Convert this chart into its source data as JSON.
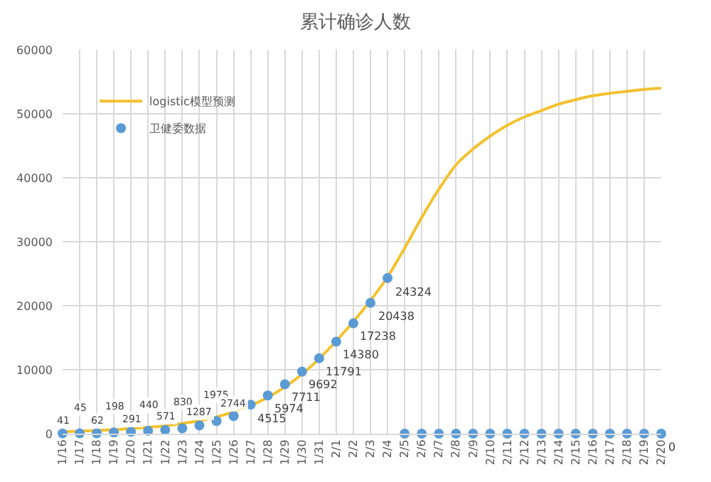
{
  "chart_data": {
    "type": "line",
    "title": "累计确诊人数",
    "categories": [
      "1/16",
      "1/17",
      "1/18",
      "1/19",
      "1/20",
      "1/21",
      "1/22",
      "1/23",
      "1/24",
      "1/25",
      "1/26",
      "1/27",
      "1/28",
      "1/29",
      "1/30",
      "1/31",
      "2/1",
      "2/2",
      "2/3",
      "2/4",
      "2/5",
      "2/6",
      "2/7",
      "2/8",
      "2/9",
      "2/10",
      "2/11",
      "2/12",
      "2/13",
      "2/14",
      "2/15",
      "2/16",
      "2/17",
      "2/18",
      "2/19",
      "2/20"
    ],
    "series": [
      {
        "name": "logistic模型预测",
        "color": "#f2c12e",
        "marker": "none",
        "values": [
          300,
          400,
          500,
          600,
          800,
          1000,
          1200,
          1600,
          2000,
          2600,
          3400,
          4400,
          5700,
          7300,
          9300,
          11700,
          14500,
          17500,
          20800,
          24500,
          29000,
          33800,
          38200,
          42000,
          44500,
          46500,
          48200,
          49500,
          50500,
          51500,
          52200,
          52800,
          53200,
          53500,
          53800,
          54000
        ]
      },
      {
        "name": "卫健委数据",
        "type": "scatter",
        "color": "#5b9bd5",
        "marker": "circle",
        "values": [
          41,
          45,
          62,
          198,
          291,
          440,
          571,
          830,
          1287,
          1975,
          2744,
          4515,
          5974,
          7711,
          9692,
          11791,
          14380,
          17238,
          20438,
          24324,
          0,
          0,
          0,
          0,
          0,
          0,
          0,
          0,
          0,
          0,
          0,
          0,
          0,
          0,
          0,
          0
        ],
        "value_labels": [
          "41",
          "45",
          "62",
          "198",
          "291",
          "440",
          "571",
          "830",
          "1287",
          "1975",
          "2744",
          "4515",
          "5974",
          "7711",
          "9692",
          "11791",
          "14380",
          "17238",
          "20438",
          "24324",
          null,
          null,
          null,
          null,
          null,
          null,
          null,
          null,
          null,
          null,
          null,
          null,
          null,
          null,
          null,
          "0"
        ]
      }
    ],
    "ylim": [
      0,
      60000
    ],
    "yticks": [
      0,
      10000,
      20000,
      30000,
      40000,
      50000,
      60000
    ],
    "grid": true,
    "legend": "top left"
  }
}
